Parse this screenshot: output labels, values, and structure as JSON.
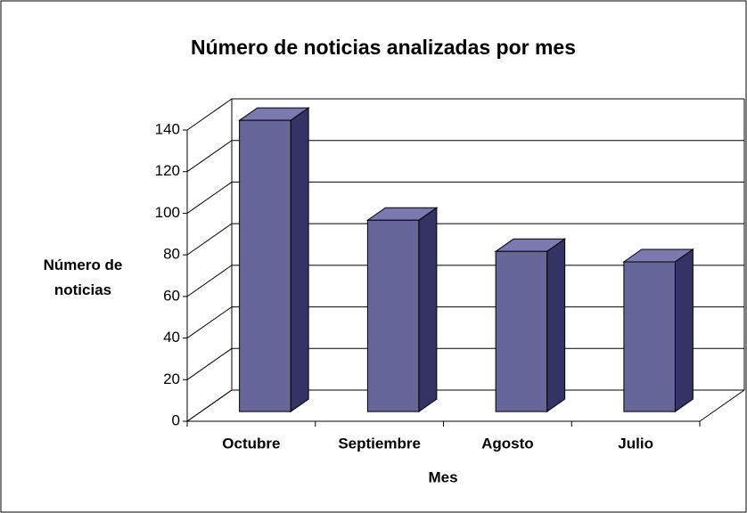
{
  "chart_data": {
    "type": "bar3d",
    "title": "Número de noticias  analizadas por mes",
    "xlabel": "Mes",
    "ylabel": "Número de noticias",
    "categories": [
      "Octubre",
      "Septiembre",
      "Agosto",
      "Julio"
    ],
    "values": [
      140,
      92,
      77,
      72
    ],
    "color": "#666699",
    "ylim": [
      0,
      140
    ],
    "yticks": [
      0,
      20,
      40,
      60,
      80,
      100,
      120,
      140
    ],
    "grid": true
  }
}
